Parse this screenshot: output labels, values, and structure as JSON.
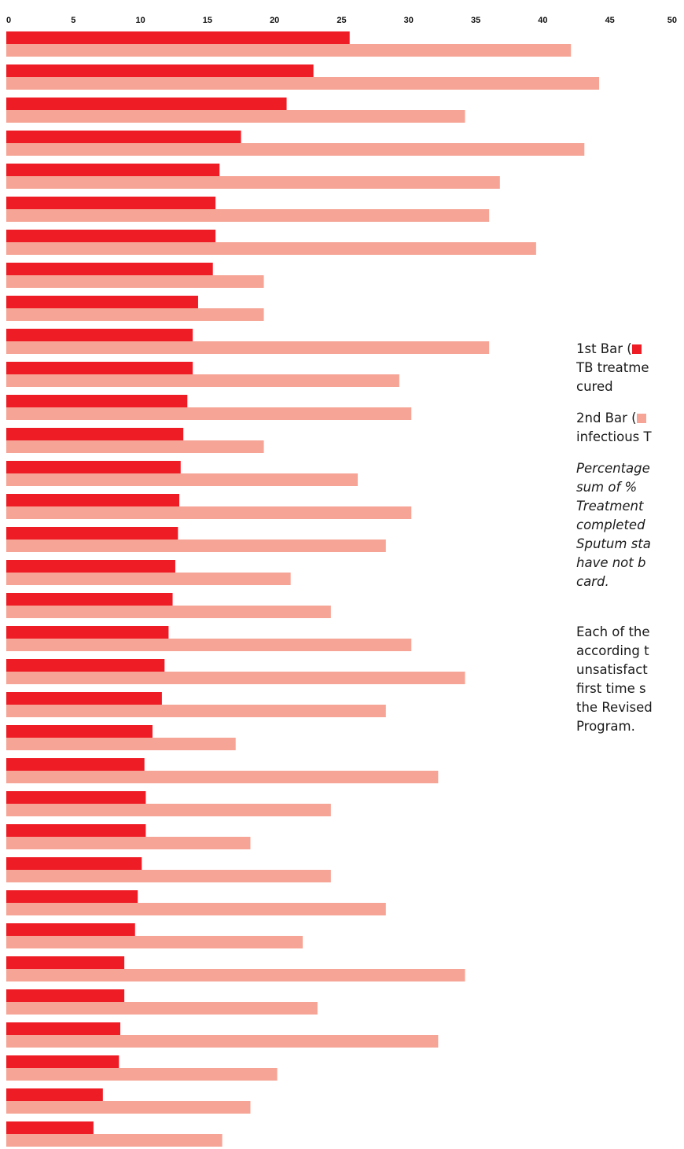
{
  "colors": {
    "series1": "#ee1c25",
    "series2": "#f5a495"
  },
  "chart_data": {
    "type": "bar",
    "orientation": "horizontal",
    "xlim": [
      0,
      50
    ],
    "ticks": [
      "0",
      "5",
      "10",
      "15",
      "20",
      "25",
      "30",
      "35",
      "40",
      "45",
      "50"
    ],
    "grid": false,
    "series": [
      {
        "values": [
          25.6,
          22.9,
          20.9,
          17.5,
          15.9,
          15.6,
          15.6,
          15.4,
          14.3,
          13.9,
          13.9,
          13.5,
          13.2,
          13.0,
          12.9,
          12.8,
          12.6,
          12.4,
          12.1,
          11.8,
          11.6,
          10.9,
          10.3,
          10.4,
          10.4,
          10.1,
          9.8,
          9.6,
          8.8,
          8.8,
          8.5,
          8.4,
          7.2,
          6.5
        ]
      },
      {
        "values": [
          42.1,
          44.2,
          34.2,
          43.1,
          36.8,
          36.0,
          39.5,
          19.2,
          19.2,
          36.0,
          29.3,
          30.2,
          19.2,
          26.2,
          30.2,
          28.3,
          21.2,
          24.2,
          30.2,
          34.2,
          28.3,
          17.1,
          32.2,
          24.2,
          18.2,
          24.2,
          28.3,
          22.1,
          34.2,
          23.2,
          32.2,
          20.2,
          18.2,
          16.1
        ]
      }
    ]
  },
  "legend": {
    "line1": "1st Bar (",
    "line2": "TB treatme",
    "line3": "cured",
    "line4": "2nd Bar (",
    "line5": "infectious T",
    "note1": "Percentage",
    "note2": "sum of  %",
    "note3": "Treatment",
    "note4": "completed",
    "note5": "Sputum sta",
    "note6": "have not b",
    "note7": "card.",
    "desc1": "Each of the",
    "desc2": "according t",
    "desc3": "unsatisfact",
    "desc4": "first time s",
    "desc5": "the Revised",
    "desc6": "Program."
  }
}
